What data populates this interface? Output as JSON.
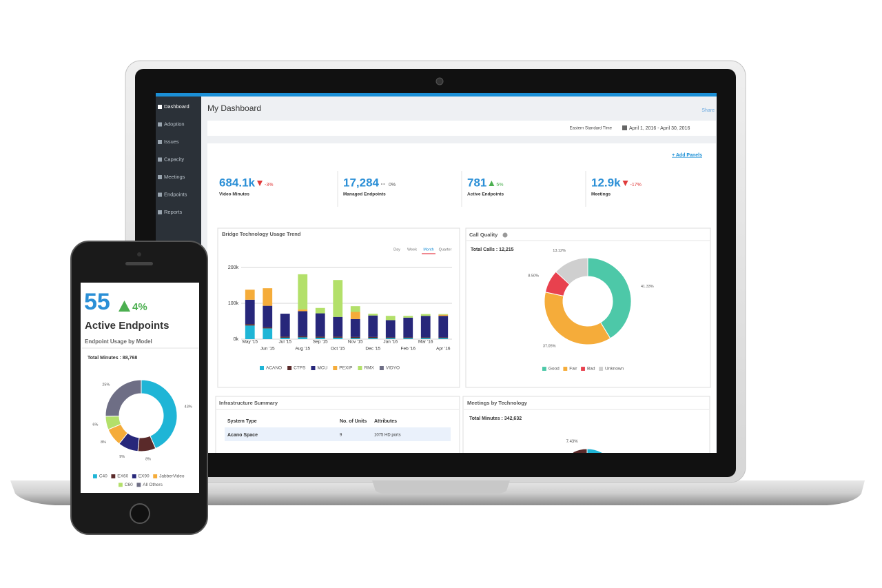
{
  "sidebar": {
    "items": [
      "Dashboard",
      "Adoption",
      "Issues",
      "Capacity",
      "Meetings",
      "Endpoints",
      "Reports"
    ]
  },
  "header": {
    "title": "My Dashboard",
    "share": "Share",
    "timezone": "Eastern Standard Time",
    "date_range": "April 1, 2016 - April 30, 2016",
    "add_panels": "+ Add Panels"
  },
  "kpis": [
    {
      "value": "684.1k",
      "change": "-3%",
      "label": "Video Minutes",
      "color": "#e03b3b"
    },
    {
      "value": "17,284",
      "change": "0%",
      "label": "Managed Endpoints",
      "color": "#555555"
    },
    {
      "value": "781",
      "change": "5%",
      "label": "Active Endpoints",
      "color": "#4caf50"
    },
    {
      "value": "12.9k",
      "change": "-17%",
      "label": "Meetings",
      "color": "#e03b3b"
    }
  ],
  "chart_data": [
    {
      "type": "bar",
      "title": "Bridge Technology Usage Trend",
      "tabs": [
        "Day",
        "Week",
        "Month",
        "Quarter"
      ],
      "categories": [
        "May '15",
        "Jun '15",
        "Jul '15",
        "Aug '15",
        "Sep '15",
        "Oct '15",
        "Nov '15",
        "Dec '15",
        "Jan '16",
        "Feb '16",
        "Mar '16",
        "Apr '16"
      ],
      "series": [
        {
          "name": "ACANO",
          "color": "#1fb5d6",
          "values": [
            38000,
            30000,
            4000,
            5000,
            4000,
            4000,
            3000,
            3000,
            3000,
            3000,
            3000,
            3000
          ]
        },
        {
          "name": "CTPS",
          "color": "#5a2a2a",
          "values": [
            4000,
            3000,
            3000,
            3000,
            3000,
            3000,
            3000,
            3000,
            2000,
            2000,
            2000,
            2000
          ]
        },
        {
          "name": "MCU",
          "color": "#27277a",
          "values": [
            68000,
            60000,
            64000,
            70000,
            65000,
            55000,
            50000,
            60000,
            48000,
            55000,
            60000,
            60000
          ]
        },
        {
          "name": "PEXIP",
          "color": "#f5ac3a",
          "values": [
            28000,
            49000,
            0,
            5000,
            0,
            0,
            20000,
            0,
            0,
            0,
            0,
            3000
          ]
        },
        {
          "name": "RMX",
          "color": "#b3e06a",
          "values": [
            0,
            0,
            0,
            98000,
            15000,
            103000,
            16000,
            5000,
            12000,
            5000,
            5000,
            2000
          ]
        },
        {
          "name": "VIDYO",
          "color": "#6e6e85",
          "values": [
            0,
            0,
            0,
            0,
            0,
            0,
            0,
            0,
            0,
            0,
            0,
            0
          ]
        }
      ],
      "ylim": [
        0,
        200000
      ],
      "yticks": [
        {
          "value": 0,
          "label": "0k"
        },
        {
          "value": 100000,
          "label": "100k"
        },
        {
          "value": 200000,
          "label": "200k"
        }
      ],
      "grid": true
    },
    {
      "type": "pie",
      "title": "Call Quality",
      "subtitle": "Total Calls : 12,215",
      "categories": [
        "Good",
        "Fair",
        "Bad",
        "Unknown"
      ],
      "values": [
        41.33,
        37.05,
        8.5,
        13.12
      ],
      "value_labels": [
        "41.33%",
        "37.05%",
        "8.50%",
        "13.12%"
      ],
      "colors": [
        "#4dc8a8",
        "#f5ac3a",
        "#e8414e",
        "#cfcfcf"
      ]
    },
    {
      "type": "pie",
      "title": "Meetings by Technology",
      "subtitle": "Total Minutes : 342,632",
      "categories": [
        null,
        null
      ],
      "values": [
        92.57,
        7.43
      ],
      "value_labels": [
        null,
        "7.43%"
      ],
      "colors": [
        "#1fb5d6",
        "#5a2a2a"
      ]
    },
    {
      "type": "pie",
      "title": "Endpoint Usage by Model",
      "subtitle": "Total Minutes : 88,768",
      "categories": [
        "C40",
        "EX60",
        "EX90",
        "JabberVideo",
        "C60",
        "All Others"
      ],
      "values": [
        43,
        8,
        9,
        8,
        6,
        25
      ],
      "value_labels": [
        "43%",
        "8%",
        "9%",
        "8%",
        "6%",
        "25%"
      ],
      "colors": [
        "#1fb5d6",
        "#5a2a2a",
        "#27277a",
        "#f5ac3a",
        "#b3e06a",
        "#6e6e85"
      ]
    }
  ],
  "infrastructure": {
    "title": "Infrastructure Summary",
    "columns": [
      "System Type",
      "No. of Units",
      "Attributes"
    ],
    "rows": [
      [
        "Acano Space",
        "9",
        "1075 HD ports"
      ]
    ]
  },
  "phone": {
    "value": "55",
    "change": "4%",
    "label": "Active Endpoints"
  }
}
